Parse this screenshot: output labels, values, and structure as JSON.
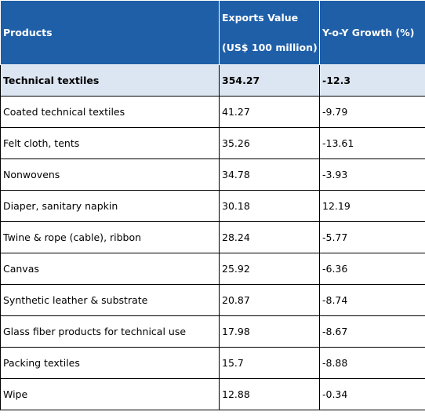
{
  "chart_data": {
    "type": "table",
    "columns": [
      "Products",
      "Exports Value (US$ 100 million)",
      "Y-o-Y Growth (%)"
    ],
    "header": {
      "products": "Products",
      "exports_line1": "Exports Value",
      "exports_line2": "(US$ 100 million)",
      "growth": "Y-o-Y Growth (%)"
    },
    "rows": [
      {
        "product": "Technical textiles",
        "value": "354.27",
        "growth": "-12.3"
      },
      {
        "product": "Coated technical textiles",
        "value": "41.27",
        "growth": "-9.79"
      },
      {
        "product": "Felt cloth, tents",
        "value": "35.26",
        "growth": "-13.61"
      },
      {
        "product": "Nonwovens",
        "value": "34.78",
        "growth": "-3.93"
      },
      {
        "product": "Diaper, sanitary napkin",
        "value": "30.18",
        "growth": "12.19"
      },
      {
        "product": "Twine & rope (cable), ribbon",
        "value": "28.24",
        "growth": "-5.77"
      },
      {
        "product": "Canvas",
        "value": "25.92",
        "growth": "-6.36"
      },
      {
        "product": "Synthetic leather & substrate",
        "value": "20.87",
        "growth": "-8.74"
      },
      {
        "product": "Glass fiber products for technical use",
        "value": "17.98",
        "growth": "-8.67"
      },
      {
        "product": "Packing textiles",
        "value": "15.7",
        "growth": "-8.88"
      },
      {
        "product": "Wipe",
        "value": "12.88",
        "growth": "-0.34"
      }
    ],
    "colors": {
      "header_bg": "#1f5fa8",
      "header_text": "#ffffff",
      "total_row_bg": "#dce6f2"
    }
  }
}
